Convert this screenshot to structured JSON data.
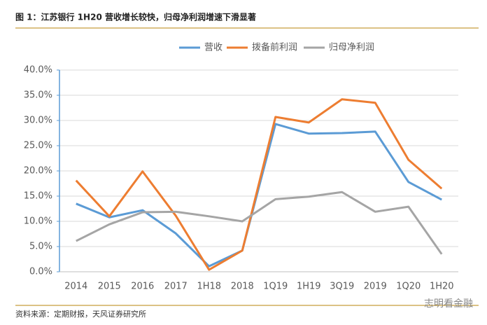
{
  "chart_data": {
    "type": "line",
    "title": "图 1：江苏银行 1H20 营收增长较快，归母净利润增速下滑显著",
    "source": "资料来源：定期财报，天风证券研究所",
    "watermark": "志明看金融",
    "categories": [
      "2014",
      "2015",
      "2016",
      "2017",
      "1H18",
      "2018",
      "1Q19",
      "1H19",
      "3Q19",
      "2019",
      "1Q20",
      "1H20"
    ],
    "series": [
      {
        "name": "营收",
        "color": "#5b9bd5",
        "values": [
          13.5,
          10.8,
          12.2,
          7.6,
          1.1,
          4.2,
          29.3,
          27.4,
          27.5,
          27.8,
          17.8,
          14.3
        ]
      },
      {
        "name": "拨备前利润",
        "color": "#ed7d31",
        "values": [
          18.1,
          11.0,
          19.9,
          11.1,
          0.4,
          4.2,
          30.7,
          29.6,
          34.2,
          33.5,
          22.2,
          16.5
        ]
      },
      {
        "name": "归母净利润",
        "color": "#a5a5a5",
        "values": [
          6.1,
          9.4,
          11.8,
          11.9,
          11.0,
          10.0,
          14.4,
          14.9,
          15.8,
          11.9,
          12.9,
          3.5
        ]
      }
    ],
    "ylim": [
      0,
      40
    ],
    "yticks": [
      {
        "value": 0,
        "label": "0.0%"
      },
      {
        "value": 5,
        "label": "5.0%"
      },
      {
        "value": 10,
        "label": "10.0%"
      },
      {
        "value": 15,
        "label": "15.0%"
      },
      {
        "value": 20,
        "label": "20.0%"
      },
      {
        "value": 25,
        "label": "25.0%"
      },
      {
        "value": 30,
        "label": "30.0%"
      },
      {
        "value": 35,
        "label": "35.0%"
      },
      {
        "value": 40,
        "label": "40.0%"
      }
    ],
    "grid": true,
    "legend": "top"
  }
}
